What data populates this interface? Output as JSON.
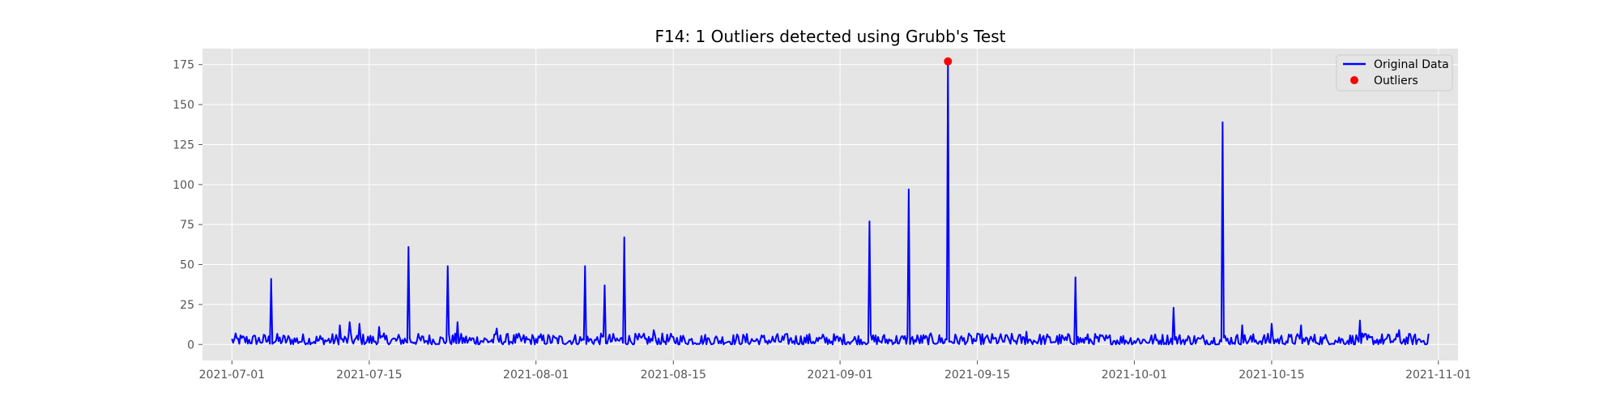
{
  "chart_data": {
    "type": "line",
    "title": "F14: 1 Outliers detected using Grubb's Test",
    "xlabel": "",
    "ylabel": "",
    "x_range": [
      "2021-06-28",
      "2021-11-03"
    ],
    "ylim": [
      -10,
      185
    ],
    "x_ticks": [
      "2021-07-01",
      "2021-07-15",
      "2021-08-01",
      "2021-08-15",
      "2021-09-01",
      "2021-09-15",
      "2021-10-01",
      "2021-10-15",
      "2021-11-01"
    ],
    "y_ticks": [
      0,
      25,
      50,
      75,
      100,
      125,
      150,
      175
    ],
    "grid": true,
    "legend_position": "top-right",
    "background_color": "#e5e5e5",
    "grid_color": "#ffffff",
    "series": [
      {
        "name": "Original Data",
        "color": "#0000ff",
        "type": "line",
        "x_start": "2021-07-01",
        "x_end": "2021-10-31",
        "baseline_min": 0,
        "baseline_max": 7,
        "peaks": [
          {
            "date": "2021-07-05",
            "value": 41
          },
          {
            "date": "2021-07-12",
            "value": 12
          },
          {
            "date": "2021-07-13",
            "value": 14
          },
          {
            "date": "2021-07-14",
            "value": 13
          },
          {
            "date": "2021-07-16",
            "value": 11
          },
          {
            "date": "2021-07-19",
            "value": 61
          },
          {
            "date": "2021-07-23",
            "value": 49
          },
          {
            "date": "2021-07-24",
            "value": 14
          },
          {
            "date": "2021-07-28",
            "value": 10
          },
          {
            "date": "2021-08-06",
            "value": 49
          },
          {
            "date": "2021-08-08",
            "value": 37
          },
          {
            "date": "2021-08-10",
            "value": 67
          },
          {
            "date": "2021-08-13",
            "value": 9
          },
          {
            "date": "2021-09-04",
            "value": 77
          },
          {
            "date": "2021-09-08",
            "value": 97
          },
          {
            "date": "2021-09-12",
            "value": 177
          },
          {
            "date": "2021-09-20",
            "value": 8
          },
          {
            "date": "2021-09-25",
            "value": 42
          },
          {
            "date": "2021-10-05",
            "value": 23
          },
          {
            "date": "2021-10-10",
            "value": 139
          },
          {
            "date": "2021-10-12",
            "value": 12
          },
          {
            "date": "2021-10-15",
            "value": 13
          },
          {
            "date": "2021-10-18",
            "value": 12
          },
          {
            "date": "2021-10-24",
            "value": 15
          },
          {
            "date": "2021-10-28",
            "value": 9
          }
        ]
      },
      {
        "name": "Outliers",
        "color": "#ff0000",
        "type": "scatter",
        "points": [
          {
            "date": "2021-09-12",
            "value": 177
          }
        ]
      }
    ]
  }
}
